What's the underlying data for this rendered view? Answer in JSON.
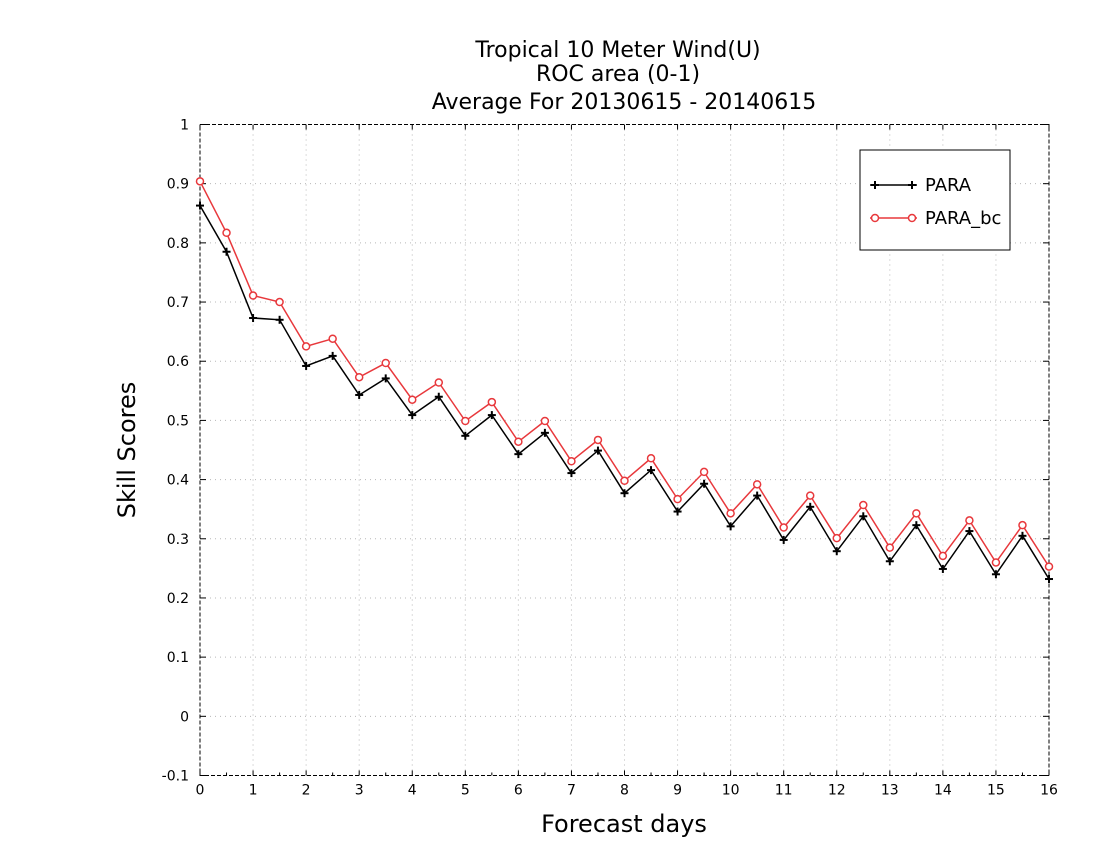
{
  "chart_data": {
    "type": "line",
    "title_lines": [
      "Tropical 10 Meter Wind(U)",
      "ROC area (0-1)",
      "Average For 20130615 - 20140615"
    ],
    "xlabel": "Forecast days",
    "ylabel": "Skill Scores",
    "xlim": [
      0,
      16
    ],
    "ylim": [
      -0.1,
      1
    ],
    "x_ticks": [
      0,
      1,
      2,
      3,
      4,
      5,
      6,
      7,
      8,
      9,
      10,
      11,
      12,
      13,
      14,
      15,
      16
    ],
    "x_tick_labels": [
      "0",
      "1",
      "2",
      "3",
      "4",
      "5",
      "6",
      "7",
      "8",
      "9",
      "10",
      "11",
      "12",
      "13",
      "14",
      "15",
      "16"
    ],
    "y_ticks": [
      -0.1,
      0,
      0.1,
      0.2,
      0.3,
      0.4,
      0.5,
      0.6,
      0.7,
      0.8,
      0.9,
      1
    ],
    "y_tick_labels": [
      "-0.1",
      "0",
      "0.1",
      "0.2",
      "0.3",
      "0.4",
      "0.5",
      "0.6",
      "0.7",
      "0.8",
      "0.9",
      "1"
    ],
    "grid": true,
    "legend_position": "top-right",
    "x": [
      0,
      0.5,
      1,
      1.5,
      2,
      2.5,
      3,
      3.5,
      4,
      4.5,
      5,
      5.5,
      6,
      6.5,
      7,
      7.5,
      8,
      8.5,
      9,
      9.5,
      10,
      10.5,
      11,
      11.5,
      12,
      12.5,
      13,
      13.5,
      14,
      14.5,
      15,
      15.5,
      16
    ],
    "series": [
      {
        "name": "PARA",
        "color": "#000000",
        "marker": "plus",
        "values": [
          0.863,
          0.785,
          0.673,
          0.67,
          0.592,
          0.609,
          0.543,
          0.571,
          0.509,
          0.54,
          0.474,
          0.509,
          0.443,
          0.479,
          0.411,
          0.449,
          0.377,
          0.416,
          0.346,
          0.393,
          0.321,
          0.373,
          0.298,
          0.354,
          0.279,
          0.338,
          0.262,
          0.323,
          0.249,
          0.313,
          0.24,
          0.305,
          0.232
        ]
      },
      {
        "name": "PARA_bc",
        "color": "#e8383c",
        "marker": "circle",
        "values": [
          0.904,
          0.817,
          0.711,
          0.7,
          0.625,
          0.638,
          0.573,
          0.597,
          0.535,
          0.564,
          0.499,
          0.531,
          0.464,
          0.499,
          0.431,
          0.467,
          0.398,
          0.436,
          0.367,
          0.413,
          0.343,
          0.392,
          0.319,
          0.373,
          0.301,
          0.357,
          0.285,
          0.343,
          0.271,
          0.331,
          0.26,
          0.323,
          0.253
        ]
      }
    ]
  }
}
